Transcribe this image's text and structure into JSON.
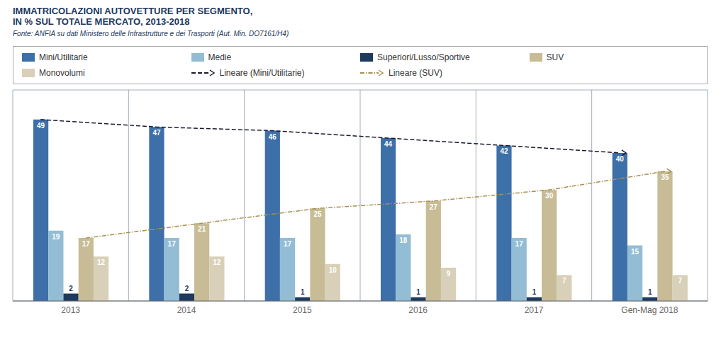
{
  "chart_data": {
    "type": "bar",
    "title": "IMMATRICOLAZIONI AUTOVETTURE PER SEGMENTO,\nIN % SUL TOTALE MERCATO, 2013-2018",
    "subtitle": "Fonte: ANFIA su dati Ministero delle Infrastrutture e dei Trasporti (Aut. Min. DO7161/H4)",
    "categories": [
      "2013",
      "2014",
      "2015",
      "2016",
      "2017",
      "Gen-Mag 2018"
    ],
    "series": [
      {
        "name": "Mini/Utilitarie",
        "type": "bar",
        "color": "#3D6FA8",
        "values": [
          49,
          47,
          46,
          44,
          42,
          40
        ]
      },
      {
        "name": "Medie",
        "type": "bar",
        "color": "#92BDD4",
        "values": [
          19,
          17,
          17,
          18,
          17,
          15
        ]
      },
      {
        "name": "Superiori/Lusso/Sportive",
        "type": "bar",
        "color": "#1E3A5F",
        "values": [
          2,
          2,
          1,
          1,
          1,
          1
        ]
      },
      {
        "name": "SUV",
        "type": "bar",
        "color": "#C8BC96",
        "values": [
          17,
          21,
          25,
          27,
          30,
          35
        ]
      },
      {
        "name": "Monovolumi",
        "type": "bar",
        "color": "#D8D0B8",
        "values": [
          12,
          12,
          10,
          9,
          7,
          7
        ]
      },
      {
        "name": "Lineare (Mini/Utilitarie)",
        "type": "line",
        "line_style": "dashed",
        "color": "#1A1A2E",
        "values": [
          49,
          47,
          46,
          44,
          42,
          40
        ]
      },
      {
        "name": "Lineare (SUV)",
        "type": "line",
        "line_style": "dashdot",
        "color": "#A89050",
        "values": [
          17,
          21,
          25,
          27,
          30,
          35
        ]
      }
    ],
    "ylim": [
      0,
      57
    ],
    "data_labels": true,
    "tick_labels": "x",
    "grid": false,
    "legend": "top"
  }
}
